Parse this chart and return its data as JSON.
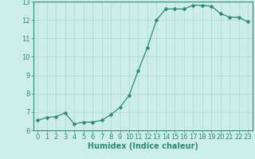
{
  "x": [
    0,
    1,
    2,
    3,
    4,
    5,
    6,
    7,
    8,
    9,
    10,
    11,
    12,
    13,
    14,
    15,
    16,
    17,
    18,
    19,
    20,
    21,
    22,
    23
  ],
  "y": [
    6.55,
    6.7,
    6.75,
    6.95,
    6.35,
    6.45,
    6.45,
    6.55,
    6.85,
    7.25,
    7.9,
    9.25,
    10.5,
    12.0,
    12.6,
    12.6,
    12.6,
    12.8,
    12.8,
    12.75,
    12.35,
    12.15,
    12.15,
    11.9
  ],
  "line_color": "#2a8b78",
  "marker": "D",
  "marker_size": 2.5,
  "background_color": "#cdeee8",
  "grid_color": "#aed8d0",
  "xlabel": "Humidex (Indice chaleur)",
  "xlim": [
    -0.5,
    23.5
  ],
  "ylim": [
    6,
    13
  ],
  "yticks": [
    6,
    7,
    8,
    9,
    10,
    11,
    12,
    13
  ],
  "xticks": [
    0,
    1,
    2,
    3,
    4,
    5,
    6,
    7,
    8,
    9,
    10,
    11,
    12,
    13,
    14,
    15,
    16,
    17,
    18,
    19,
    20,
    21,
    22,
    23
  ],
  "tick_color": "#2a8b78",
  "label_color": "#2a8b78",
  "font_size": 6,
  "xlabel_fontsize": 7
}
